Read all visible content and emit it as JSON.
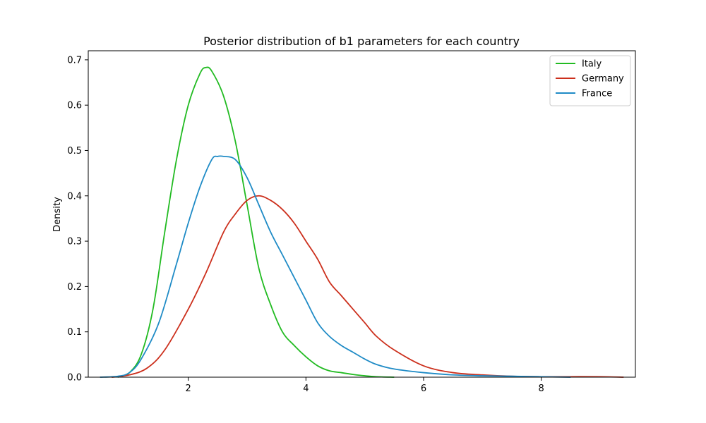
{
  "chart_data": {
    "type": "line",
    "title": "Posterior distribution of b1 parameters for each country",
    "xlabel": "",
    "ylabel": "Density",
    "xlim": [
      0.3,
      9.6
    ],
    "ylim": [
      0,
      0.72
    ],
    "xticks": [
      2,
      4,
      6,
      8
    ],
    "yticks": [
      0.0,
      0.1,
      0.2,
      0.3,
      0.4,
      0.5,
      0.6,
      0.7
    ],
    "grid": false,
    "legend_position": "top-right",
    "series": [
      {
        "name": "Italy",
        "color": "#22bb22",
        "x": [
          0.8,
          1.0,
          1.2,
          1.4,
          1.6,
          1.8,
          2.0,
          2.2,
          2.3,
          2.4,
          2.6,
          2.8,
          3.0,
          3.2,
          3.4,
          3.6,
          3.8,
          4.0,
          4.2,
          4.4,
          4.6,
          4.8,
          5.0,
          5.2,
          5.5
        ],
        "y": [
          0.0,
          0.01,
          0.05,
          0.15,
          0.32,
          0.48,
          0.6,
          0.67,
          0.683,
          0.675,
          0.62,
          0.52,
          0.38,
          0.24,
          0.16,
          0.1,
          0.07,
          0.045,
          0.025,
          0.014,
          0.01,
          0.006,
          0.003,
          0.001,
          0.0
        ]
      },
      {
        "name": "Germany",
        "color": "#cc2f1c",
        "x": [
          0.7,
          1.0,
          1.3,
          1.6,
          2.0,
          2.3,
          2.6,
          2.8,
          3.0,
          3.2,
          3.4,
          3.6,
          3.8,
          4.0,
          4.2,
          4.4,
          4.6,
          4.8,
          5.0,
          5.2,
          5.5,
          6.0,
          6.5,
          7.0,
          7.5,
          8.0,
          8.5,
          9.0,
          9.4
        ],
        "y": [
          0.0,
          0.005,
          0.02,
          0.06,
          0.15,
          0.23,
          0.32,
          0.36,
          0.39,
          0.4,
          0.39,
          0.37,
          0.34,
          0.3,
          0.26,
          0.21,
          0.18,
          0.15,
          0.12,
          0.09,
          0.06,
          0.025,
          0.01,
          0.005,
          0.002,
          0.001,
          0.001,
          0.001,
          0.0
        ]
      },
      {
        "name": "France",
        "color": "#1f8bc6",
        "x": [
          0.5,
          0.8,
          1.0,
          1.2,
          1.5,
          1.8,
          2.0,
          2.2,
          2.4,
          2.5,
          2.6,
          2.8,
          3.0,
          3.2,
          3.4,
          3.6,
          3.8,
          4.0,
          4.2,
          4.4,
          4.6,
          4.8,
          5.0,
          5.2,
          5.5,
          6.0,
          6.5,
          7.0,
          7.5,
          8.0,
          8.5
        ],
        "y": [
          0.0,
          0.002,
          0.01,
          0.04,
          0.12,
          0.25,
          0.34,
          0.42,
          0.48,
          0.487,
          0.487,
          0.48,
          0.44,
          0.38,
          0.32,
          0.27,
          0.22,
          0.17,
          0.12,
          0.09,
          0.07,
          0.055,
          0.04,
          0.028,
          0.018,
          0.01,
          0.005,
          0.003,
          0.002,
          0.001,
          0.0
        ]
      }
    ]
  }
}
